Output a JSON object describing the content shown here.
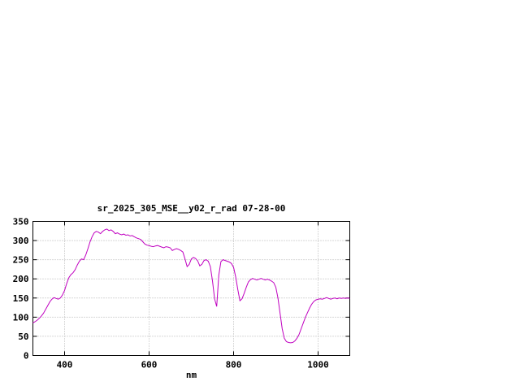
{
  "page": {
    "background": "#ffffff"
  },
  "chart_data": {
    "type": "line",
    "title": "sr_2025_305_MSE__y02_r_rad 07-28-00",
    "xlabel": "nm",
    "ylabel": "",
    "xlim": [
      325,
      1075
    ],
    "ylim": [
      0,
      350
    ],
    "xticks": [
      400,
      600,
      800,
      1000
    ],
    "yticks": [
      0,
      50,
      100,
      150,
      200,
      250,
      300,
      350
    ],
    "grid": true,
    "legend": "none",
    "colors": {
      "line": "#c000c0",
      "grid": "#b0b0b0",
      "axis": "#000000",
      "background": "#ffffff"
    },
    "series": [
      {
        "name": "sr_2025_305_MSE__y02_r_rad",
        "x": [
          325,
          330,
          335,
          340,
          345,
          350,
          355,
          360,
          365,
          370,
          375,
          380,
          385,
          390,
          395,
          400,
          405,
          410,
          415,
          420,
          425,
          430,
          435,
          440,
          445,
          450,
          455,
          460,
          465,
          470,
          475,
          480,
          485,
          490,
          495,
          500,
          505,
          510,
          515,
          520,
          525,
          530,
          535,
          540,
          545,
          550,
          555,
          560,
          565,
          570,
          575,
          580,
          585,
          590,
          595,
          600,
          605,
          610,
          615,
          620,
          625,
          630,
          635,
          640,
          645,
          650,
          655,
          660,
          665,
          670,
          675,
          680,
          685,
          690,
          695,
          700,
          705,
          710,
          715,
          720,
          725,
          730,
          735,
          740,
          745,
          750,
          755,
          760,
          765,
          770,
          775,
          780,
          785,
          790,
          795,
          800,
          805,
          810,
          815,
          820,
          825,
          830,
          835,
          840,
          845,
          850,
          855,
          860,
          865,
          870,
          875,
          880,
          885,
          890,
          895,
          900,
          905,
          910,
          915,
          920,
          925,
          930,
          935,
          940,
          945,
          950,
          955,
          960,
          965,
          970,
          975,
          980,
          985,
          990,
          995,
          1000,
          1005,
          1010,
          1015,
          1020,
          1025,
          1030,
          1035,
          1040,
          1045,
          1050,
          1055,
          1060,
          1065,
          1070,
          1075
        ],
        "y": [
          85,
          88,
          92,
          97,
          103,
          110,
          120,
          130,
          140,
          147,
          151,
          149,
          147,
          150,
          158,
          170,
          188,
          203,
          211,
          216,
          224,
          236,
          246,
          252,
          250,
          262,
          278,
          296,
          310,
          320,
          324,
          322,
          318,
          324,
          328,
          330,
          326,
          328,
          324,
          318,
          320,
          317,
          315,
          317,
          314,
          315,
          312,
          313,
          310,
          307,
          305,
          303,
          297,
          291,
          288,
          287,
          285,
          284,
          286,
          287,
          285,
          283,
          281,
          284,
          283,
          281,
          274,
          277,
          279,
          277,
          274,
          270,
          252,
          232,
          238,
          252,
          256,
          253,
          247,
          234,
          238,
          248,
          250,
          246,
          232,
          195,
          148,
          128,
          210,
          245,
          250,
          248,
          246,
          244,
          240,
          230,
          205,
          172,
          143,
          148,
          162,
          178,
          192,
          198,
          201,
          199,
          197,
          199,
          201,
          199,
          197,
          199,
          197,
          194,
          190,
          178,
          150,
          110,
          70,
          45,
          36,
          34,
          33,
          34,
          38,
          45,
          55,
          70,
          85,
          100,
          112,
          124,
          134,
          141,
          145,
          147,
          148,
          147,
          149,
          151,
          149,
          147,
          149,
          150,
          148,
          150,
          149,
          150,
          149,
          150,
          149
        ]
      }
    ]
  }
}
